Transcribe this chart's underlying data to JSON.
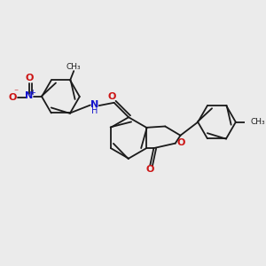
{
  "bg_color": "#ebebeb",
  "bond_color": "#1a1a1a",
  "bond_width": 1.3,
  "N_color": "#1414cc",
  "O_color": "#cc1414",
  "fig_width": 3.0,
  "fig_height": 3.0,
  "dpi": 100,
  "xlim": [
    0,
    10
  ],
  "ylim": [
    0,
    10
  ]
}
